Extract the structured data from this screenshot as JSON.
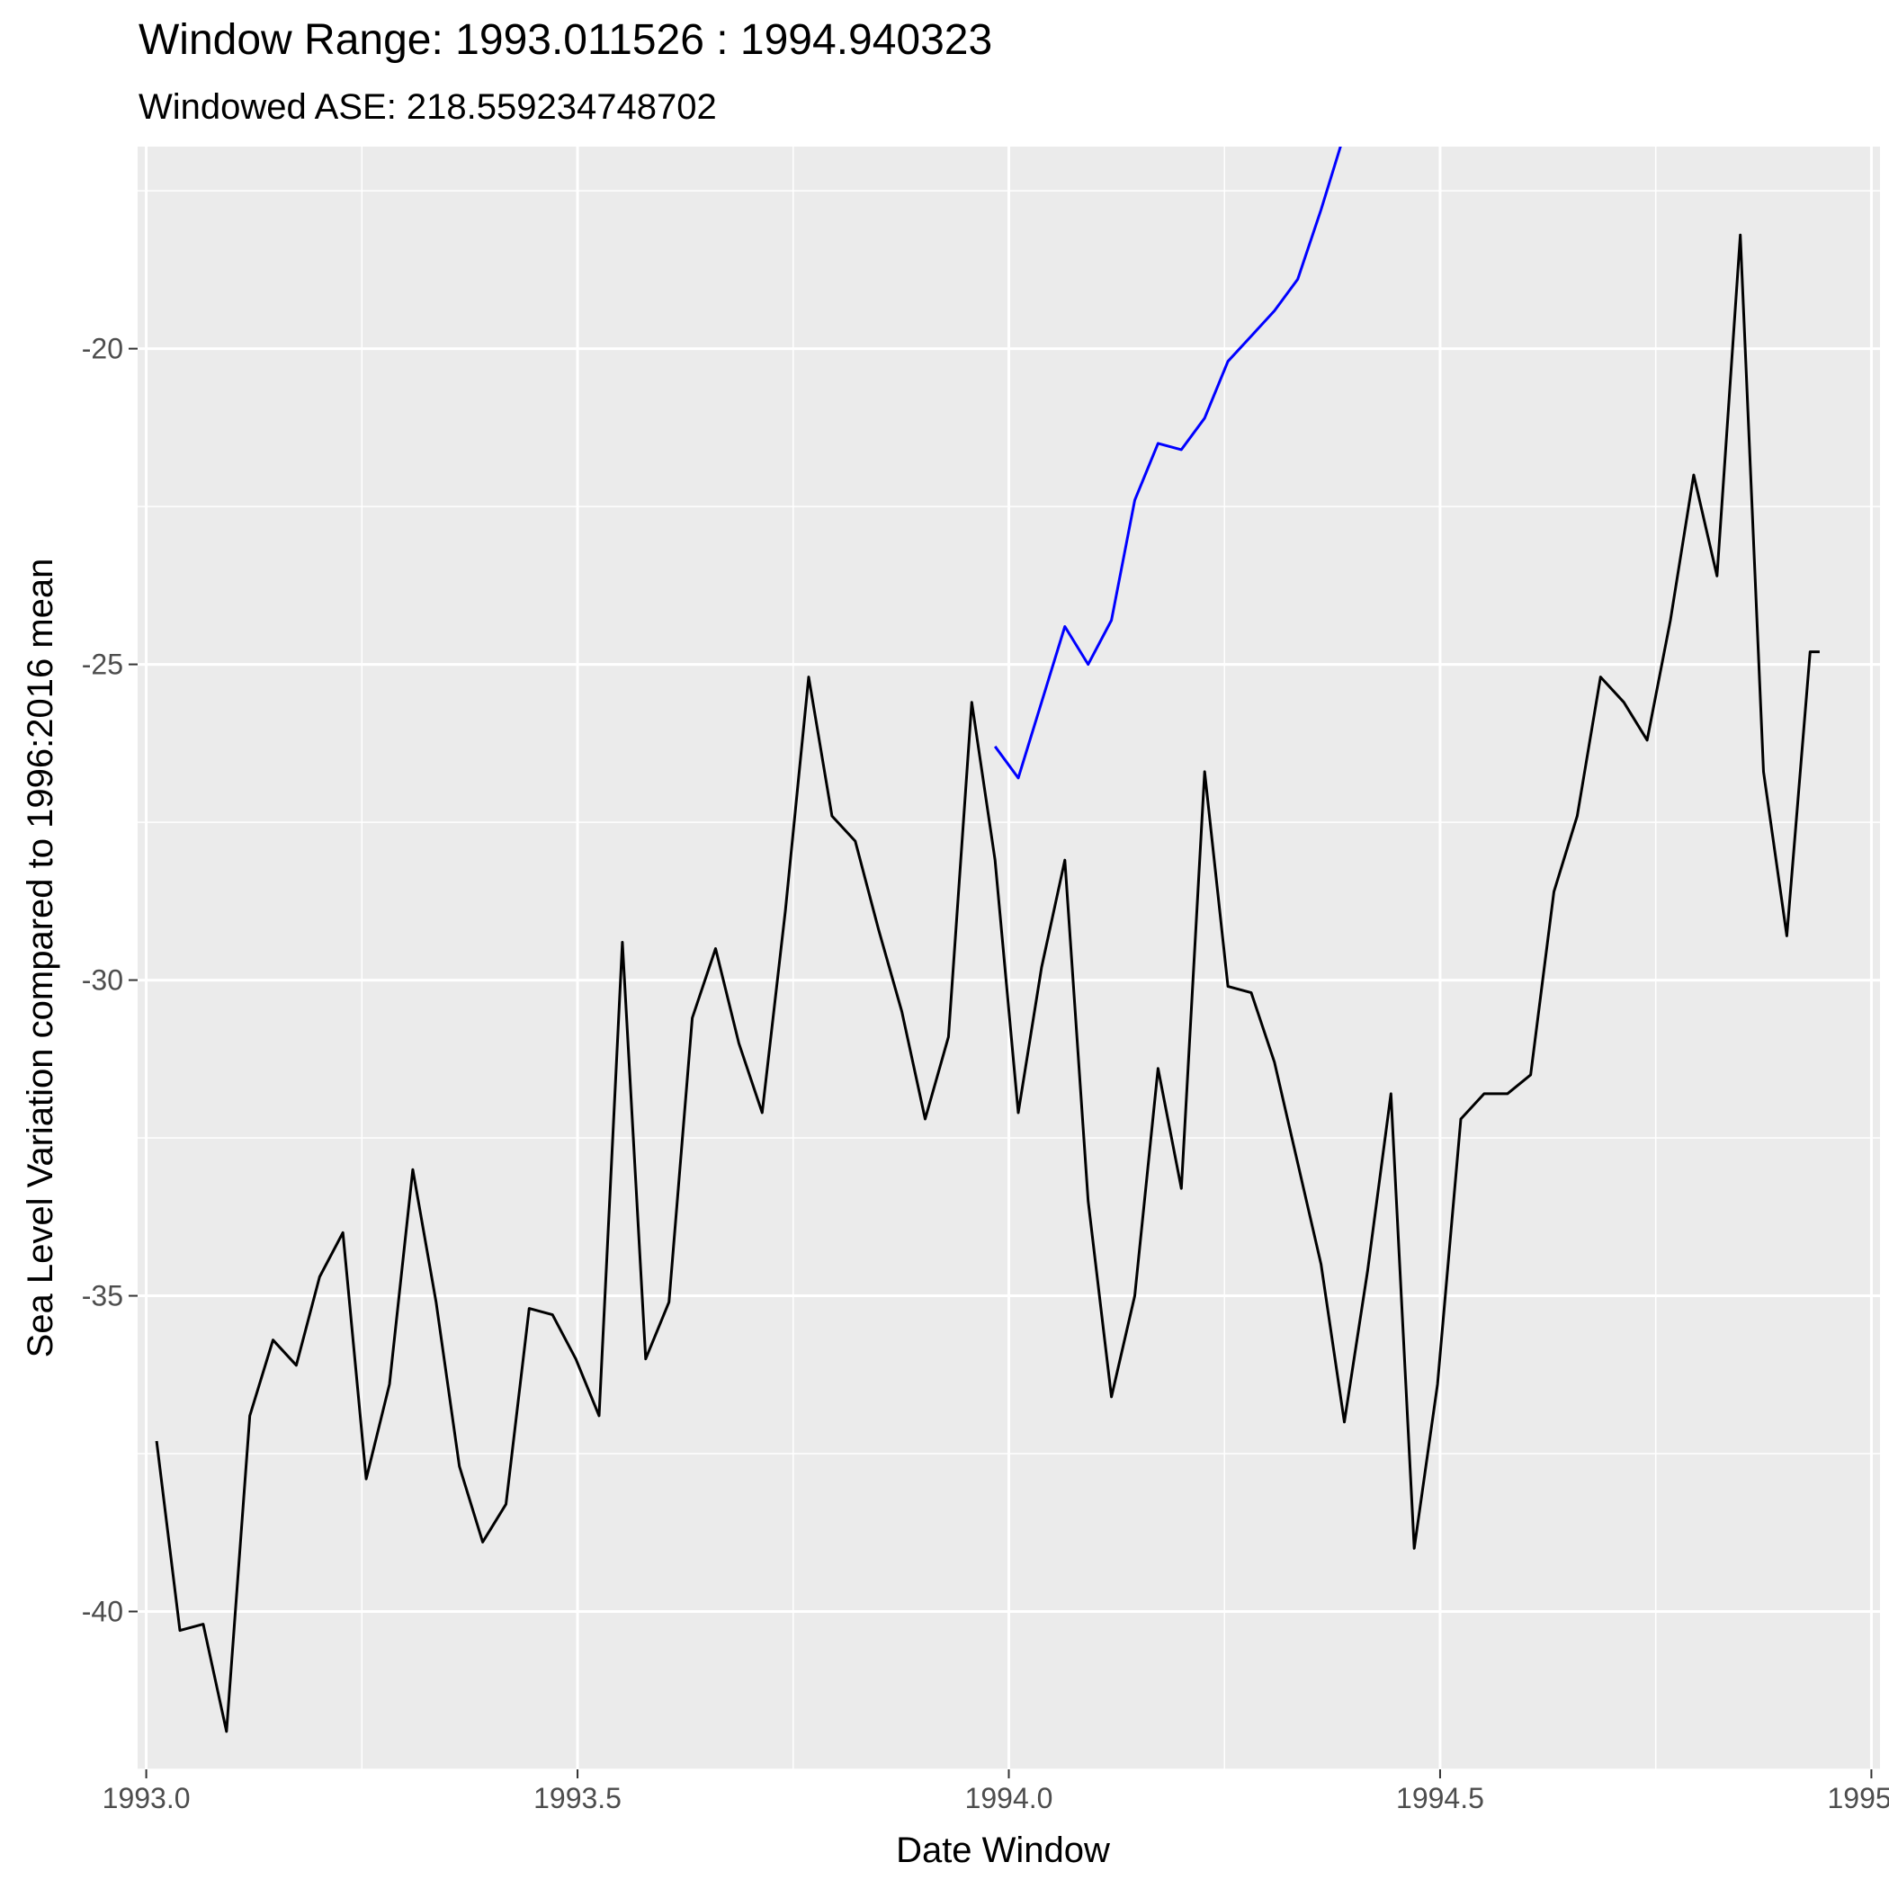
{
  "chart_data": {
    "type": "line",
    "title": "Window Range: 1993.011526 : 1994.940323",
    "subtitle": "Windowed ASE: 218.559234748702",
    "xlabel": "Date Window",
    "ylabel": "Sea Level Variation compared to 1996:2016 mean",
    "xlim": [
      1992.99,
      1995.01
    ],
    "ylim": [
      -42.5,
      -16.8
    ],
    "x_ticks": [
      1993.0,
      1993.5,
      1994.0,
      1994.5,
      1995.0
    ],
    "x_tick_labels": [
      "1993.0",
      "1993.5",
      "1994.0",
      "1994.5",
      "1995.0"
    ],
    "y_ticks": [
      -40,
      -35,
      -30,
      -25,
      -20
    ],
    "y_tick_labels": [
      "-40",
      "-35",
      "-30",
      "-25",
      "-20"
    ],
    "grid": true,
    "series": [
      {
        "color": "#000000",
        "x": [
          1993.012,
          1993.039,
          1993.066,
          1993.093,
          1993.12,
          1993.147,
          1993.174,
          1993.201,
          1993.228,
          1993.255,
          1993.282,
          1993.309,
          1993.336,
          1993.363,
          1993.39,
          1993.417,
          1993.444,
          1993.471,
          1993.498,
          1993.525,
          1993.552,
          1993.579,
          1993.606,
          1993.633,
          1993.66,
          1993.687,
          1993.714,
          1993.741,
          1993.768,
          1993.795,
          1993.822,
          1993.849,
          1993.876,
          1993.903,
          1993.93,
          1993.957,
          1993.984,
          1994.011,
          1994.038,
          1994.065,
          1994.092,
          1994.119,
          1994.146,
          1994.173,
          1994.2,
          1994.227,
          1994.254,
          1994.281,
          1994.308,
          1994.335,
          1994.362,
          1994.389,
          1994.416,
          1994.443,
          1994.47,
          1994.497,
          1994.524,
          1994.551,
          1994.578,
          1994.605,
          1994.632,
          1994.659,
          1994.686,
          1994.713,
          1994.74,
          1994.767,
          1994.794,
          1994.821,
          1994.848,
          1994.875,
          1994.902,
          1994.929,
          1994.94
        ],
        "y": [
          -37.3,
          -40.3,
          -40.2,
          -41.9,
          -36.9,
          -35.7,
          -36.1,
          -34.7,
          -34.0,
          -37.9,
          -36.4,
          -33.0,
          -35.1,
          -37.7,
          -38.9,
          -38.3,
          -35.2,
          -35.3,
          -36.0,
          -36.9,
          -29.4,
          -36.0,
          -35.1,
          -30.6,
          -29.5,
          -31.0,
          -32.1,
          -28.9,
          -25.2,
          -27.4,
          -27.8,
          -29.2,
          -30.5,
          -32.2,
          -30.9,
          -25.6,
          -28.1,
          -32.1,
          -29.8,
          -28.1,
          -33.5,
          -36.6,
          -35.0,
          -31.4,
          -33.3,
          -26.7,
          -30.1,
          -30.2,
          -31.3,
          -32.9,
          -34.5,
          -37.0,
          -34.6,
          -31.8,
          -39.0,
          -36.4,
          -32.2,
          -31.8,
          -31.8,
          -31.5,
          -28.6,
          -27.4,
          -25.2,
          -25.6,
          -26.2,
          -24.3,
          -22.0,
          -23.6,
          -18.2,
          -26.7,
          -29.3,
          -24.8,
          -24.8
        ]
      },
      {
        "color": "#0000ff",
        "x": [
          1993.984,
          1994.011,
          1994.038,
          1994.065,
          1994.092,
          1994.119,
          1994.146,
          1994.173,
          1994.2,
          1994.227,
          1994.254,
          1994.281,
          1994.308,
          1994.335,
          1994.362,
          1994.389
        ],
        "y": [
          -26.3,
          -26.8,
          -25.6,
          -24.4,
          -25.0,
          -24.3,
          -22.4,
          -21.5,
          -21.6,
          -21.1,
          -20.2,
          -19.8,
          -19.4,
          -18.9,
          -17.8,
          -16.6
        ]
      }
    ]
  }
}
